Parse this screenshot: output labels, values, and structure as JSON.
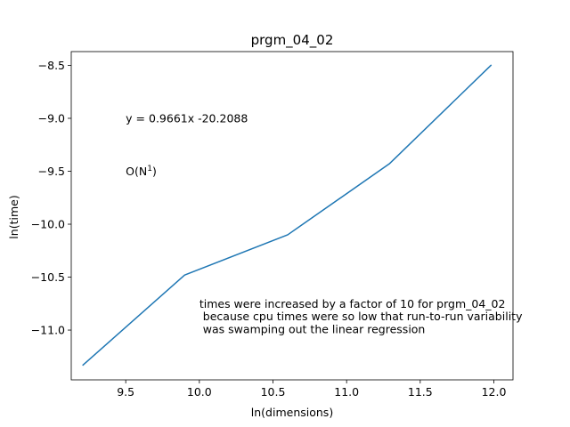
{
  "chart_data": {
    "type": "line",
    "title": "prgm_04_02",
    "xlabel": "ln(dimensions)",
    "ylabel": "ln(time)",
    "xlim": [
      9.13,
      12.13
    ],
    "ylim": [
      -11.47,
      -8.37
    ],
    "xticks": [
      9.5,
      10.0,
      10.5,
      11.0,
      11.5,
      12.0
    ],
    "xtick_labels": [
      "9.5",
      "10.0",
      "10.5",
      "11.0",
      "11.5",
      "12.0"
    ],
    "yticks": [
      -8.5,
      -9.0,
      -9.5,
      -10.0,
      -10.5,
      -11.0
    ],
    "ytick_labels": [
      "−8.5",
      "−9.0",
      "−9.5",
      "−10.0",
      "−10.5",
      "−11.0"
    ],
    "grid": false,
    "series": [
      {
        "color": "#1f77b4",
        "x": [
          9.21,
          9.9,
          10.6,
          11.29,
          11.98
        ],
        "y": [
          -11.33,
          -10.48,
          -10.1,
          -9.43,
          -8.5
        ]
      }
    ],
    "annotations": [
      {
        "text": "y = 0.9661x -20.2088",
        "x": 9.5,
        "y": -9.0
      },
      {
        "text": "O(N",
        "sup": "1",
        "text_after": ")",
        "x": 9.5,
        "y": -9.5
      },
      {
        "text": "times were increased by a factor of 10 for prgm_04_02",
        "x": 10.0,
        "y": -10.75
      },
      {
        "text": " because cpu times were so low that run-to-run variability",
        "x": 10.0,
        "y": -10.87
      },
      {
        "text": " was swamping out the linear regression",
        "x": 10.0,
        "y": -10.99
      }
    ]
  }
}
